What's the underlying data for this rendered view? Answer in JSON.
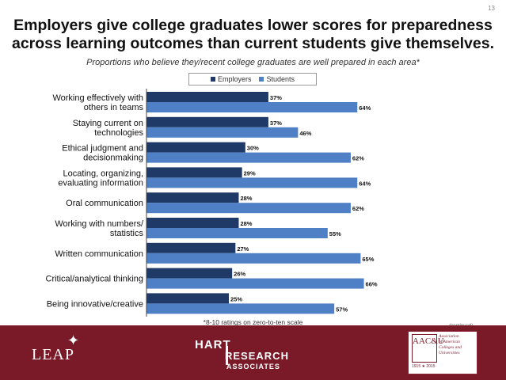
{
  "slide_number": "13",
  "title": "Employers give college graduates lower scores for preparedness across learning outcomes than current students give themselves.",
  "subtitle": "Proportions who believe they/recent college graduates are well prepared in each area*",
  "footnote": "*8-10 ratings on zero-to-ten scale",
  "continued": "(continued)",
  "colors": {
    "employers": "#1f3a66",
    "students": "#4f7fc4",
    "footer": "#7a1a29"
  },
  "chart_data": {
    "type": "bar",
    "orientation": "horizontal",
    "categories": [
      "Working effectively with others in teams",
      "Staying current on technologies",
      "Ethical judgment and decisionmaking",
      "Locating, organizing, evaluating information",
      "Oral communication",
      "Working with numbers/ statistics",
      "Written communication",
      "Critical/analytical thinking",
      "Being innovative/creative"
    ],
    "category_lines": [
      [
        "Working effectively with",
        "others in teams"
      ],
      [
        "Staying current on",
        "technologies"
      ],
      [
        "Ethical judgment and",
        "decisionmaking"
      ],
      [
        "Locating, organizing,",
        "evaluating information"
      ],
      [
        "Oral communication"
      ],
      [
        "Working with numbers/",
        "statistics"
      ],
      [
        "Written communication"
      ],
      [
        "Critical/analytical thinking"
      ],
      [
        "Being innovative/creative"
      ]
    ],
    "series": [
      {
        "name": "Employers",
        "values": [
          37,
          37,
          30,
          29,
          28,
          28,
          27,
          26,
          25
        ]
      },
      {
        "name": "Students",
        "values": [
          64,
          46,
          62,
          64,
          62,
          55,
          65,
          66,
          57
        ]
      }
    ],
    "value_suffix": "%",
    "legend_position": "top-center",
    "grid": false
  },
  "logos": {
    "leap": "LEAP",
    "hart_line1": "HART",
    "hart_line2": "RESEARCH",
    "hart_line3": "ASSOCIATES",
    "aacu_mark": "AAC&U",
    "aacu_text": [
      "Association",
      "of American",
      "Colleges and",
      "Universities"
    ],
    "aacu_years": "1915 ★ 2015"
  }
}
